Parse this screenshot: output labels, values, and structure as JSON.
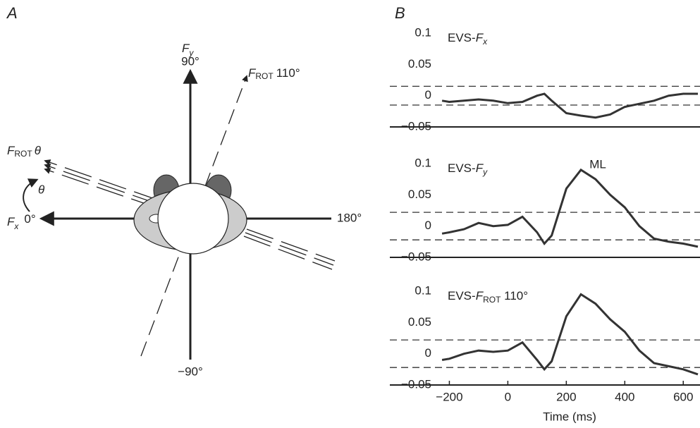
{
  "diagram": {
    "panel_a": "A",
    "panel_b": "B",
    "fy_var": "F",
    "fy_sub": "y",
    "fy_angle": "90°",
    "frot110_var": "F",
    "frot110_sub": "ROT",
    "frot110_angle": "110°",
    "frot_var": "F",
    "frot_sub": "ROT",
    "frot_angle": "θ",
    "theta": "θ",
    "fx_var": "F",
    "fx_sub": "x",
    "fx_angle": "0°",
    "right_angle": "180°",
    "bottom_angle": "−90°"
  },
  "chart_data": [
    {
      "type": "line",
      "title_prefix": "EVS-",
      "title_var": "F",
      "title_sub": "x",
      "title_suffix": "",
      "x": [
        -225,
        -200,
        -150,
        -100,
        -50,
        0,
        50,
        100,
        125,
        150,
        200,
        250,
        300,
        350,
        400,
        450,
        500,
        550,
        600,
        650
      ],
      "values": [
        -0.008,
        -0.01,
        -0.008,
        -0.006,
        -0.008,
        -0.012,
        -0.01,
        0.0,
        0.003,
        -0.008,
        -0.028,
        -0.032,
        -0.035,
        -0.03,
        -0.018,
        -0.013,
        -0.008,
        0.0,
        0.003,
        0.003
      ],
      "color": "#333333",
      "thresholds": [
        0.015,
        -0.015
      ],
      "xlim": [
        -230,
        650
      ],
      "ylim": [
        -0.05,
        0.1
      ],
      "yticks": [
        {
          "value": -0.05,
          "label": "−0.05"
        },
        0,
        0.05,
        0.1
      ]
    },
    {
      "type": "line",
      "title_prefix": "EVS-",
      "title_var": "F",
      "title_sub": "y",
      "title_suffix": "",
      "annotation": "ML",
      "x": [
        -225,
        -200,
        -150,
        -100,
        -50,
        0,
        50,
        100,
        125,
        150,
        200,
        250,
        300,
        350,
        400,
        450,
        500,
        550,
        600,
        650
      ],
      "values": [
        -0.012,
        -0.01,
        -0.005,
        0.005,
        0.0,
        0.002,
        0.015,
        -0.01,
        -0.028,
        -0.015,
        0.06,
        0.09,
        0.075,
        0.05,
        0.03,
        0.0,
        -0.02,
        -0.025,
        -0.028,
        -0.033
      ],
      "color": "#333333",
      "thresholds": [
        0.022,
        -0.022
      ],
      "xlim": [
        -230,
        650
      ],
      "ylim": [
        -0.05,
        0.1
      ],
      "yticks": [
        {
          "value": -0.05,
          "label": "−0.05"
        },
        0,
        0.05,
        0.1
      ]
    },
    {
      "type": "line",
      "title_prefix": "EVS-",
      "title_var": "F",
      "title_sub": "ROT",
      "title_suffix": " 110°",
      "xlabel": "Time (ms)",
      "x": [
        -225,
        -200,
        -150,
        -100,
        -50,
        0,
        50,
        100,
        125,
        150,
        200,
        250,
        300,
        350,
        400,
        450,
        500,
        550,
        600,
        650
      ],
      "values": [
        -0.01,
        -0.008,
        0.0,
        0.005,
        0.003,
        0.005,
        0.018,
        -0.01,
        -0.025,
        -0.012,
        0.06,
        0.095,
        0.08,
        0.055,
        0.035,
        0.005,
        -0.015,
        -0.02,
        -0.025,
        -0.033
      ],
      "color": "#333333",
      "thresholds": [
        0.022,
        -0.022
      ],
      "xlim": [
        -230,
        650
      ],
      "ylim": [
        -0.05,
        0.1
      ],
      "yticks": [
        {
          "value": -0.05,
          "label": "−0.05"
        },
        0,
        0.05,
        0.1
      ],
      "xticks": [
        {
          "value": -200,
          "label": "−200"
        },
        0,
        200,
        400,
        600
      ]
    }
  ]
}
